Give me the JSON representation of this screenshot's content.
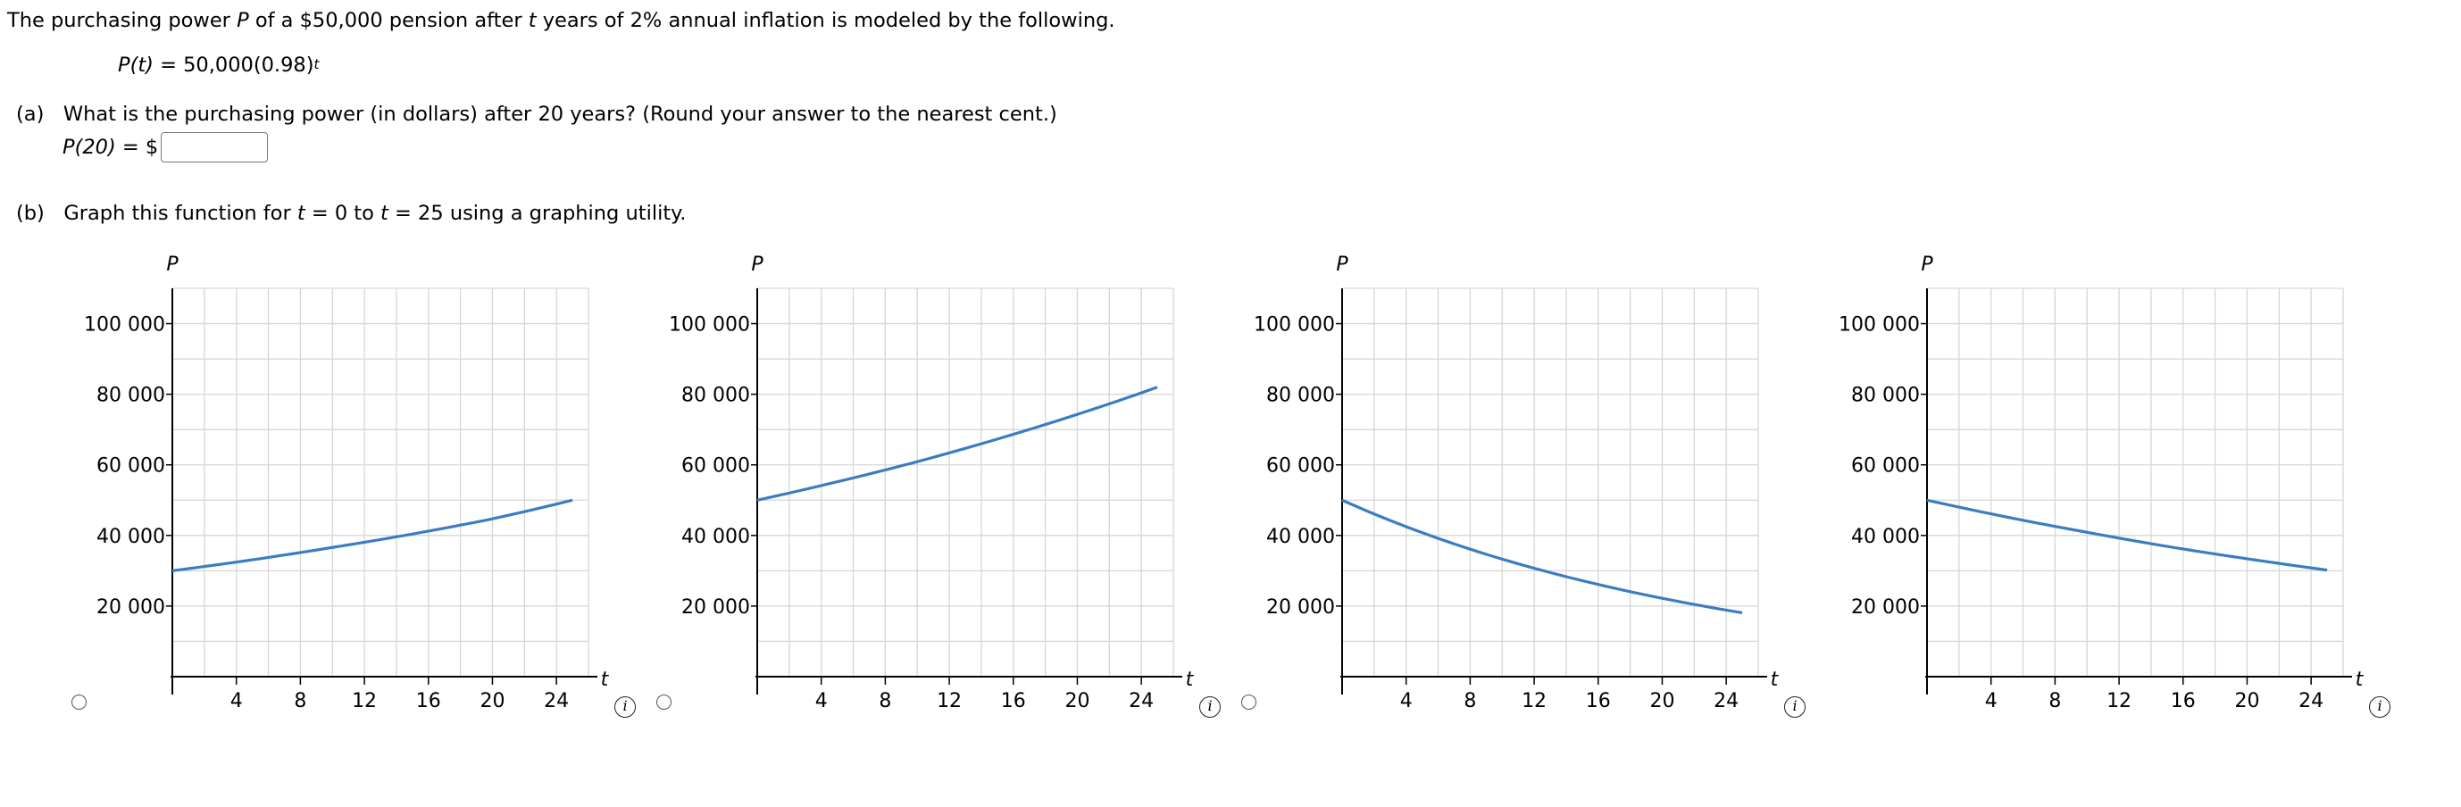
{
  "intro": {
    "before_p": "The purchasing power ",
    "var_p": "P",
    "mid": " of a $50,000 pension after ",
    "var_t": "t",
    "after_t": " years of 2% annual inflation is modeled by the following."
  },
  "formula": {
    "lhs": "P(t)",
    "rhs": " = 50,000(0.98)",
    "exponent": "t"
  },
  "part_a": {
    "label": "(a)",
    "question": "What is the purchasing power (in dollars) after 20 years? (Round your answer to the nearest cent.)",
    "answer_lhs": "P(20)",
    "answer_eq": " = $",
    "answer_value": ""
  },
  "part_b": {
    "label": "(b)",
    "text_1": "Graph this function for ",
    "var_t1": "t",
    "text_2": " = 0 to ",
    "var_t2": "t",
    "text_3": " = 25 using a graphing utility."
  },
  "colors": {
    "curve": "#3a7dc0",
    "grid": "#d6d6d6",
    "axis": "#000000"
  },
  "icons": {
    "radio": "radio-button-icon",
    "info": "info-icon"
  },
  "info_glyph": "i",
  "chart_data": [
    {
      "type": "line",
      "xlabel": "t",
      "ylabel": "P",
      "xlim": [
        0,
        26
      ],
      "ylim": [
        0,
        110000
      ],
      "x_ticks": [
        4,
        8,
        12,
        16,
        20,
        24
      ],
      "y_ticks": [
        20000,
        40000,
        60000,
        80000,
        100000
      ],
      "y_tick_labels": [
        "20 000",
        "40 000",
        "60 000",
        "80 000",
        "100 000"
      ],
      "x_tick_labels": [
        "4",
        "8",
        "12",
        "16",
        "20",
        "24"
      ],
      "grid": true,
      "x": [
        0,
        5,
        10,
        15,
        20,
        25
      ],
      "y": [
        30000,
        33100,
        36600,
        40400,
        44700,
        50000
      ]
    },
    {
      "type": "line",
      "xlabel": "t",
      "ylabel": "P",
      "xlim": [
        0,
        26
      ],
      "ylim": [
        0,
        110000
      ],
      "x_ticks": [
        4,
        8,
        12,
        16,
        20,
        24
      ],
      "y_ticks": [
        20000,
        40000,
        60000,
        80000,
        100000
      ],
      "y_tick_labels": [
        "20 000",
        "40 000",
        "60 000",
        "80 000",
        "100 000"
      ],
      "x_tick_labels": [
        "4",
        "8",
        "12",
        "16",
        "20",
        "24"
      ],
      "grid": true,
      "x": [
        0,
        5,
        10,
        15,
        20,
        25
      ],
      "y": [
        50000,
        55200,
        60900,
        67300,
        74300,
        82000
      ]
    },
    {
      "type": "line",
      "xlabel": "t",
      "ylabel": "P",
      "xlim": [
        0,
        26
      ],
      "ylim": [
        0,
        110000
      ],
      "x_ticks": [
        4,
        8,
        12,
        16,
        20,
        24
      ],
      "y_ticks": [
        20000,
        40000,
        60000,
        80000,
        100000
      ],
      "y_tick_labels": [
        "20 000",
        "40 000",
        "60 000",
        "80 000",
        "100 000"
      ],
      "x_tick_labels": [
        "4",
        "8",
        "12",
        "16",
        "20",
        "24"
      ],
      "grid": true,
      "x": [
        0,
        5,
        10,
        15,
        20,
        25
      ],
      "y": [
        50000,
        40800,
        33300,
        27200,
        22200,
        18100
      ]
    },
    {
      "type": "line",
      "xlabel": "t",
      "ylabel": "P",
      "xlim": [
        0,
        26
      ],
      "ylim": [
        0,
        110000
      ],
      "x_ticks": [
        4,
        8,
        12,
        16,
        20,
        24
      ],
      "y_ticks": [
        20000,
        40000,
        60000,
        80000,
        100000
      ],
      "y_tick_labels": [
        "20 000",
        "40 000",
        "60 000",
        "80 000",
        "100 000"
      ],
      "x_tick_labels": [
        "4",
        "8",
        "12",
        "16",
        "20",
        "24"
      ],
      "grid": true,
      "x": [
        0,
        5,
        10,
        15,
        20,
        25
      ],
      "y": [
        50000,
        45200,
        40900,
        36900,
        33400,
        30200
      ]
    }
  ]
}
